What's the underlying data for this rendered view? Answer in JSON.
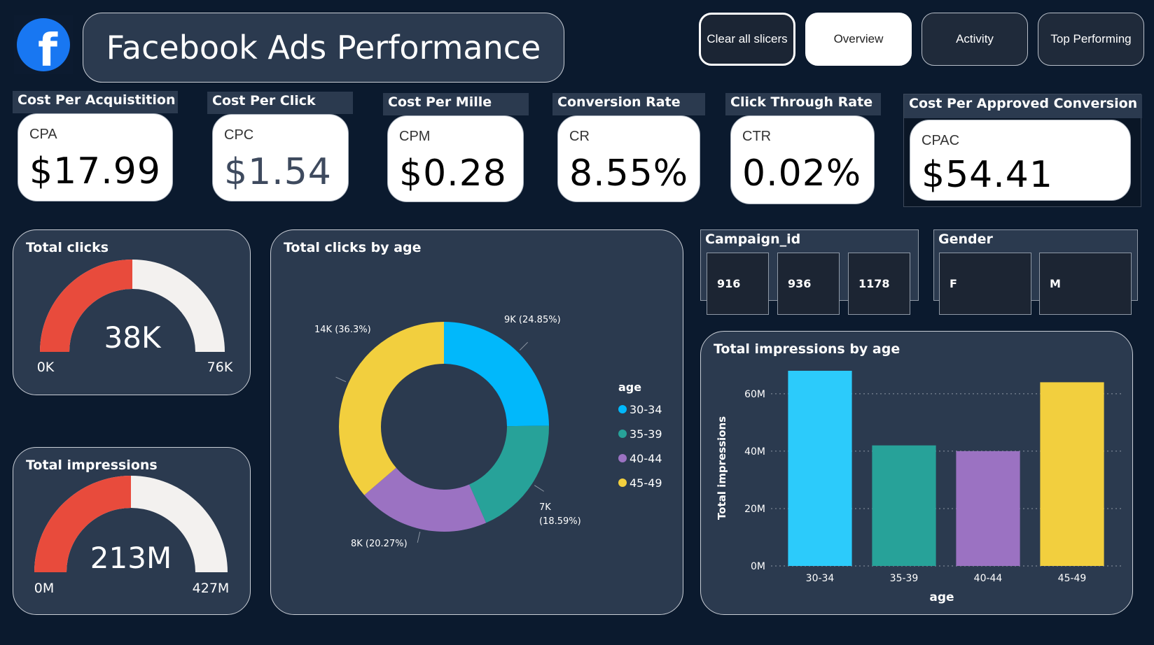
{
  "header": {
    "title": "Facebook Ads Performance",
    "logo_icon": "facebook-logo-icon",
    "logo_letter": "f"
  },
  "nav": {
    "clear": "Clear all slicers",
    "overview": "Overview",
    "activity": "Activity",
    "top": "Top Performing"
  },
  "kpis": [
    {
      "label": "Cost Per Acquistition",
      "abbr": "CPA",
      "value": "$17.99"
    },
    {
      "label": "Cost Per Click",
      "abbr": "CPC",
      "value": "$1.54"
    },
    {
      "label": "Cost Per Mille",
      "abbr": "CPM",
      "value": "$0.28"
    },
    {
      "label": "Conversion Rate",
      "abbr": "CR",
      "value": "8.55%"
    },
    {
      "label": "Click Through Rate",
      "abbr": "CTR",
      "value": "0.02%"
    },
    {
      "label": "Cost Per Approved Conversion",
      "abbr": "CPAC",
      "value": "$54.41"
    }
  ],
  "gauges": {
    "clicks": {
      "title": "Total clicks",
      "value": "38K",
      "min": "0K",
      "max": "76K",
      "fraction": 0.5
    },
    "impressions": {
      "title": "Total impressions",
      "value": "213M",
      "min": "0M",
      "max": "427M",
      "fraction": 0.5
    }
  },
  "slicers": {
    "campaign": {
      "title": "Campaign_id",
      "items": [
        "916",
        "936",
        "1178"
      ]
    },
    "gender": {
      "title": "Gender",
      "items": [
        "F",
        "M"
      ]
    }
  },
  "colors": {
    "bg": "#0b1a2e",
    "panel": "#2b3a4f",
    "gauge_fill": "#e84b3c",
    "gauge_track": "#f3f1ef",
    "age_30_34": "#01b8fb",
    "age_35_39": "#27a299",
    "age_40_44": "#9b72c2",
    "age_45_49": "#f2cf3e",
    "bar_30_34": "#2ccbfb"
  },
  "chart_data": [
    {
      "type": "pie",
      "title": "Total clicks by age",
      "legend_title": "age",
      "legend_position": "right",
      "categories": [
        "30-34",
        "35-39",
        "40-44",
        "45-49"
      ],
      "values": [
        24.85,
        18.59,
        20.27,
        36.3
      ],
      "data_labels": [
        "9K (24.85%)",
        "7K (18.59%)",
        "8K (20.27%)",
        "14K (36.3%)"
      ]
    },
    {
      "type": "bar",
      "title": "Total impressions by age",
      "categories": [
        "30-34",
        "35-39",
        "40-44",
        "45-49"
      ],
      "values": [
        68,
        42,
        40,
        64
      ],
      "xlabel": "age",
      "ylabel": "Total impressions",
      "ylim": [
        0,
        68
      ],
      "yticks": [
        0,
        20,
        40,
        60
      ],
      "ytick_labels": [
        "0M",
        "20M",
        "40M",
        "60M"
      ],
      "grid": true
    }
  ]
}
